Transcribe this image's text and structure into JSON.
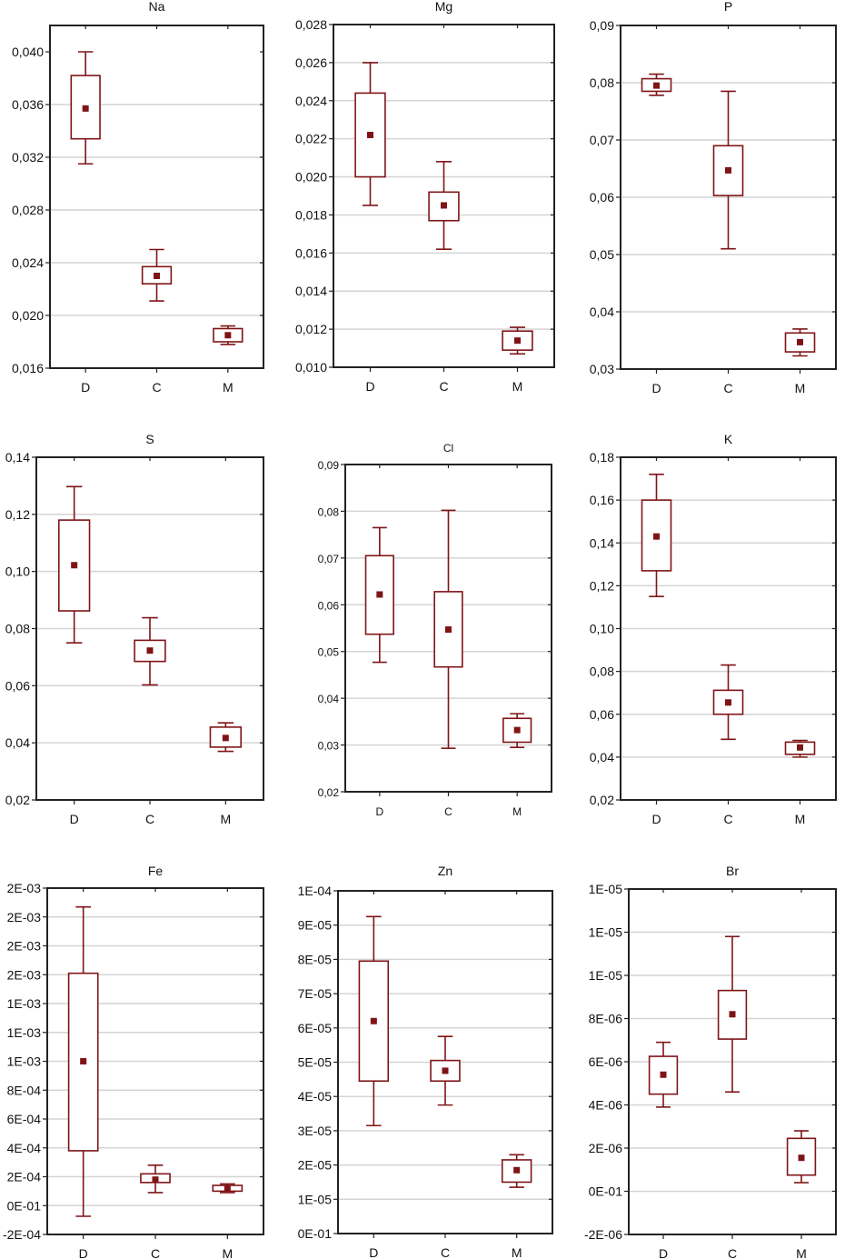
{
  "chart_data": [
    {
      "type": "box",
      "title": "Na",
      "categories": [
        "D",
        "C",
        "M"
      ],
      "ylim": [
        0.016,
        0.042
      ],
      "yticks": [
        0.016,
        0.02,
        0.024,
        0.028,
        0.032,
        0.036,
        0.04
      ],
      "ytick_labels": [
        "0,016",
        "0,020",
        "0,024",
        "0,028",
        "0,032",
        "0,036",
        "0,040"
      ],
      "grid": true,
      "boxes": [
        {
          "mean": 0.0357,
          "box_low": 0.0334,
          "box_high": 0.0382,
          "whisker_low": 0.0315,
          "whisker_high": 0.04
        },
        {
          "mean": 0.023,
          "box_low": 0.0224,
          "box_high": 0.0237,
          "whisker_low": 0.0211,
          "whisker_high": 0.025
        },
        {
          "mean": 0.0185,
          "box_low": 0.018,
          "box_high": 0.019,
          "whisker_low": 0.0178,
          "whisker_high": 0.0192
        }
      ]
    },
    {
      "type": "box",
      "title": "Mg",
      "categories": [
        "D",
        "C",
        "M"
      ],
      "ylim": [
        0.01,
        0.028
      ],
      "yticks": [
        0.01,
        0.012,
        0.014,
        0.016,
        0.018,
        0.02,
        0.022,
        0.024,
        0.026,
        0.028
      ],
      "ytick_labels": [
        "0,010",
        "0,012",
        "0,014",
        "0,016",
        "0,018",
        "0,020",
        "0,022",
        "0,024",
        "0,026",
        "0,028"
      ],
      "grid": true,
      "boxes": [
        {
          "mean": 0.0222,
          "box_low": 0.02,
          "box_high": 0.0244,
          "whisker_low": 0.0185,
          "whisker_high": 0.026
        },
        {
          "mean": 0.0185,
          "box_low": 0.0177,
          "box_high": 0.0192,
          "whisker_low": 0.0162,
          "whisker_high": 0.0208
        },
        {
          "mean": 0.0114,
          "box_low": 0.0109,
          "box_high": 0.0119,
          "whisker_low": 0.0107,
          "whisker_high": 0.0121
        }
      ]
    },
    {
      "type": "box",
      "title": "P",
      "categories": [
        "D",
        "C",
        "M"
      ],
      "ylim": [
        0.03,
        0.09
      ],
      "yticks": [
        0.03,
        0.04,
        0.05,
        0.06,
        0.07,
        0.08,
        0.09
      ],
      "ytick_labels": [
        "0,03",
        "0,04",
        "0,05",
        "0,06",
        "0,07",
        "0,08",
        "0,09"
      ],
      "grid": true,
      "boxes": [
        {
          "mean": 0.0795,
          "box_low": 0.0785,
          "box_high": 0.0807,
          "whisker_low": 0.0778,
          "whisker_high": 0.0815
        },
        {
          "mean": 0.0647,
          "box_low": 0.0603,
          "box_high": 0.069,
          "whisker_low": 0.051,
          "whisker_high": 0.0785
        },
        {
          "mean": 0.0347,
          "box_low": 0.033,
          "box_high": 0.0363,
          "whisker_low": 0.0323,
          "whisker_high": 0.037
        }
      ]
    },
    {
      "type": "box",
      "title": "S",
      "categories": [
        "D",
        "C",
        "M"
      ],
      "ylim": [
        0.02,
        0.14
      ],
      "yticks": [
        0.02,
        0.04,
        0.06,
        0.08,
        0.1,
        0.12,
        0.14
      ],
      "ytick_labels": [
        "0,02",
        "0,04",
        "0,06",
        "0,08",
        "0,10",
        "0,12",
        "0,14"
      ],
      "grid": true,
      "boxes": [
        {
          "mean": 0.1022,
          "box_low": 0.0862,
          "box_high": 0.118,
          "whisker_low": 0.075,
          "whisker_high": 0.1297
        },
        {
          "mean": 0.0723,
          "box_low": 0.0685,
          "box_high": 0.0759,
          "whisker_low": 0.0603,
          "whisker_high": 0.0838
        },
        {
          "mean": 0.0417,
          "box_low": 0.0385,
          "box_high": 0.0455,
          "whisker_low": 0.037,
          "whisker_high": 0.047
        }
      ]
    },
    {
      "type": "box",
      "title": "Cl",
      "categories": [
        "D",
        "C",
        "M"
      ],
      "ylim": [
        0.02,
        0.09
      ],
      "yticks": [
        0.02,
        0.03,
        0.04,
        0.05,
        0.06,
        0.07,
        0.08,
        0.09
      ],
      "ytick_labels": [
        "0,02",
        "0,03",
        "0,04",
        "0,05",
        "0,06",
        "0,07",
        "0,08",
        "0,09"
      ],
      "grid": true,
      "boxes": [
        {
          "mean": 0.0622,
          "box_low": 0.0537,
          "box_high": 0.0705,
          "whisker_low": 0.0477,
          "whisker_high": 0.0765
        },
        {
          "mean": 0.0547,
          "box_low": 0.0467,
          "box_high": 0.0628,
          "whisker_low": 0.0293,
          "whisker_high": 0.0802
        },
        {
          "mean": 0.0332,
          "box_low": 0.0306,
          "box_high": 0.0357,
          "whisker_low": 0.0295,
          "whisker_high": 0.0367
        }
      ]
    },
    {
      "type": "box",
      "title": "K",
      "categories": [
        "D",
        "C",
        "M"
      ],
      "ylim": [
        0.02,
        0.18
      ],
      "yticks": [
        0.02,
        0.04,
        0.06,
        0.08,
        0.1,
        0.12,
        0.14,
        0.16,
        0.18
      ],
      "ytick_labels": [
        "0,02",
        "0,04",
        "0,06",
        "0,08",
        "0,10",
        "0,12",
        "0,14",
        "0,16",
        "0,18"
      ],
      "grid": true,
      "boxes": [
        {
          "mean": 0.143,
          "box_low": 0.127,
          "box_high": 0.16,
          "whisker_low": 0.115,
          "whisker_high": 0.172
        },
        {
          "mean": 0.0655,
          "box_low": 0.06,
          "box_high": 0.0712,
          "whisker_low": 0.0483,
          "whisker_high": 0.083
        },
        {
          "mean": 0.0445,
          "box_low": 0.0413,
          "box_high": 0.047,
          "whisker_low": 0.04,
          "whisker_high": 0.0478
        }
      ]
    },
    {
      "type": "box",
      "title": "Fe",
      "categories": [
        "D",
        "C",
        "M"
      ],
      "ylim": [
        -0.0002,
        0.0022
      ],
      "yticks": [
        -0.0002,
        0,
        0.0002,
        0.0004,
        0.0006,
        0.0008,
        0.001,
        0.0012,
        0.0014,
        0.0016,
        0.0018,
        0.002,
        0.0022
      ],
      "ytick_labels": [
        "-2E-04",
        "0E-01",
        "2E-04",
        "4E-04",
        "6E-04",
        "8E-04",
        "1E-03",
        "1E-03",
        "1E-03",
        "2E-03",
        "2E-03",
        "2E-03",
        "2E-03"
      ],
      "grid": true,
      "boxes": [
        {
          "mean": 0.001,
          "box_low": 0.00038,
          "box_high": 0.00161,
          "whisker_low": -7.4e-05,
          "whisker_high": 0.00207
        },
        {
          "mean": 0.00018,
          "box_low": 0.00016,
          "box_high": 0.00022,
          "whisker_low": 9e-05,
          "whisker_high": 0.00028
        },
        {
          "mean": 0.00012,
          "box_low": 0.0001,
          "box_high": 0.00014,
          "whisker_low": 9e-05,
          "whisker_high": 0.00015
        }
      ]
    },
    {
      "type": "box",
      "title": "Zn",
      "categories": [
        "D",
        "C",
        "M"
      ],
      "ylim": [
        0,
        0.0001
      ],
      "yticks": [
        0,
        1e-05,
        2e-05,
        3e-05,
        4e-05,
        5e-05,
        6e-05,
        7e-05,
        8e-05,
        9e-05,
        0.0001
      ],
      "ytick_labels": [
        "0E-01",
        "1E-05",
        "2E-05",
        "3E-05",
        "4E-05",
        "5E-05",
        "6E-05",
        "7E-05",
        "8E-05",
        "9E-05",
        "1E-04"
      ],
      "grid": true,
      "boxes": [
        {
          "mean": 6.2e-05,
          "box_low": 4.45e-05,
          "box_high": 7.95e-05,
          "whisker_low": 3.15e-05,
          "whisker_high": 9.25e-05
        },
        {
          "mean": 4.75e-05,
          "box_low": 4.45e-05,
          "box_high": 5.05e-05,
          "whisker_low": 3.75e-05,
          "whisker_high": 5.75e-05
        },
        {
          "mean": 1.85e-05,
          "box_low": 1.5e-05,
          "box_high": 2.15e-05,
          "whisker_low": 1.35e-05,
          "whisker_high": 2.3e-05
        }
      ]
    },
    {
      "type": "box",
      "title": "Br",
      "categories": [
        "D",
        "C",
        "M"
      ],
      "ylim": [
        -2e-06,
        1.4e-05
      ],
      "yticks": [
        -2e-06,
        0,
        2e-06,
        4e-06,
        6e-06,
        8e-06,
        1e-05,
        1.2e-05,
        1.4e-05
      ],
      "ytick_labels": [
        "-2E-06",
        "0E-01",
        "2E-06",
        "4E-06",
        "6E-06",
        "8E-06",
        "1E-05",
        "1E-05",
        "1E-05"
      ],
      "grid": true,
      "boxes": [
        {
          "mean": 5.4e-06,
          "box_low": 4.5e-06,
          "box_high": 6.25e-06,
          "whisker_low": 3.9e-06,
          "whisker_high": 6.9e-06
        },
        {
          "mean": 8.2e-06,
          "box_low": 7.05e-06,
          "box_high": 9.3e-06,
          "whisker_low": 4.6e-06,
          "whisker_high": 1.18e-05
        },
        {
          "mean": 1.55e-06,
          "box_low": 7.5e-07,
          "box_high": 2.45e-06,
          "whisker_low": 4e-07,
          "whisker_high": 2.8e-06
        }
      ]
    }
  ],
  "colors": {
    "box": "#7f1417",
    "grid": "#d4d4d4",
    "axis": "#222222"
  }
}
